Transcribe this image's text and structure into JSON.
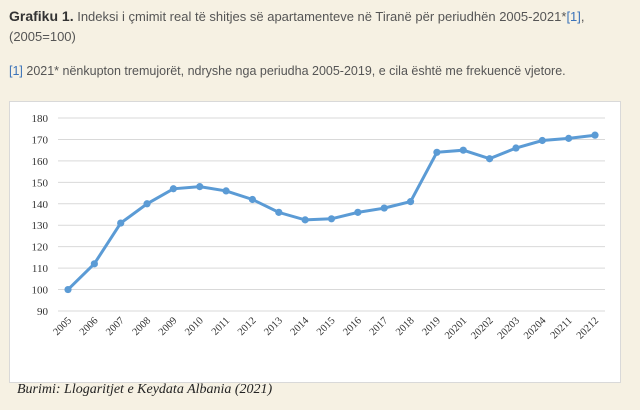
{
  "heading": {
    "label": "Grafiku 1.",
    "text": " Indeksi i çmimit real të shitjes së apartamenteve në Tiranë për periudhën 2005-2021*",
    "ref": "[1]",
    "trail": ",",
    "base": "(2005=100)"
  },
  "footnote": {
    "ref": "[1]",
    "text": " 2021* nënkupton tremujorët, ndryshe nga periudha 2005-2019, e cila është me frekuencë vjetore."
  },
  "source": "Burimi: Llogaritjet e Keydata Albania (2021)",
  "colors": {
    "line": "#5b9bd5",
    "grid": "#d9d9d9",
    "background": "#f6f1e3",
    "link": "#3b73b9"
  },
  "chart_data": {
    "type": "line",
    "categories": [
      "2005",
      "2006",
      "2007",
      "2008",
      "2009",
      "2010",
      "2011",
      "2012",
      "2013",
      "2014",
      "2015",
      "2016",
      "2017",
      "2018",
      "2019",
      "20201",
      "20202",
      "20203",
      "20204",
      "20211",
      "20212"
    ],
    "series": [
      {
        "values": [
          100,
          112,
          131,
          140,
          147,
          148,
          146,
          142,
          136,
          132.5,
          133,
          136,
          138,
          141,
          164,
          165,
          161,
          166,
          169.5,
          170.5,
          172
        ]
      }
    ],
    "yticks": [
      90,
      100,
      110,
      120,
      130,
      140,
      150,
      160,
      170,
      180
    ],
    "ylim": [
      90,
      180
    ],
    "grid": true
  }
}
